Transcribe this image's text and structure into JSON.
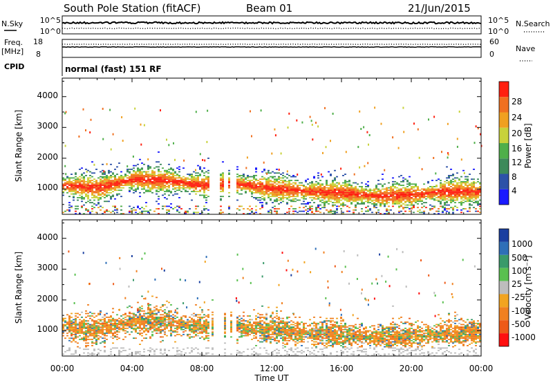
{
  "header": {
    "station": "South Pole Station (fitACF)",
    "beam": "Beam 01",
    "date": "21/Jun/2015"
  },
  "status_panels": {
    "nsky_label": "N.Sky",
    "nsearch_label": "N.Search",
    "noise_ticks": [
      "10^5",
      "10^0"
    ],
    "freq_label_1": "Freq.",
    "freq_label_2": "[MHz]",
    "freq_ticks": [
      "18",
      "8"
    ],
    "nave_label": "Nave",
    "nave_ticks": [
      "60",
      "0"
    ],
    "cpid_label": "CPID",
    "cpid_text": "normal (fast) 151 RF"
  },
  "colors": {
    "power_scale": [
      "#1a1aff",
      "#2d52a8",
      "#3d8a5a",
      "#4faf4a",
      "#c8d23a",
      "#f0a020",
      "#f07020",
      "#ff2010"
    ],
    "velocity_scale": [
      "#1a3fa0",
      "#2e6fb8",
      "#3a9a6a",
      "#5ac050",
      "#bdbdbd",
      "#f2a420",
      "#f08020",
      "#ee5a18",
      "#ff1010"
    ]
  },
  "chart_data": [
    {
      "type": "heatmap",
      "panel": "power",
      "ylabel": "Slant Range [km]",
      "xlabel": "Time UT",
      "x_ticks": [
        "00:00",
        "04:00",
        "08:00",
        "12:00",
        "16:00",
        "20:00",
        "00:00"
      ],
      "y_ticks": [
        "1000",
        "2000",
        "3000",
        "4000"
      ],
      "ylim": [
        180,
        4600
      ],
      "x_range_hours": [
        0,
        24
      ],
      "colorbar_label": "Power [dB]",
      "colorbar_ticks": [
        "4",
        "8",
        "12",
        "16",
        "20",
        "24",
        "28"
      ],
      "colorbar_range": [
        0,
        30
      ],
      "main_echo_band_km": [
        [
          0,
          1100
        ],
        [
          2,
          1000
        ],
        [
          4,
          1300
        ],
        [
          6,
          1250
        ],
        [
          8,
          1100
        ],
        [
          10,
          1150
        ],
        [
          12,
          1000
        ],
        [
          14,
          900
        ],
        [
          16,
          850
        ],
        [
          18,
          750
        ],
        [
          20,
          800
        ],
        [
          22,
          900
        ],
        [
          24,
          900
        ]
      ]
    },
    {
      "type": "heatmap",
      "panel": "velocity",
      "ylabel": "Slant Range [km]",
      "xlabel": "Time UT",
      "x_ticks": [
        "00:00",
        "04:00",
        "08:00",
        "12:00",
        "16:00",
        "20:00",
        "00:00"
      ],
      "y_ticks": [
        "1000",
        "2000",
        "3000",
        "4000"
      ],
      "ylim": [
        180,
        4600
      ],
      "x_range_hours": [
        0,
        24
      ],
      "colorbar_label": "Velocity [m s⁻¹]",
      "colorbar_ticks": [
        "1000",
        "500",
        "100",
        "25",
        "-25",
        "-100",
        "-500",
        "-1000"
      ]
    }
  ]
}
